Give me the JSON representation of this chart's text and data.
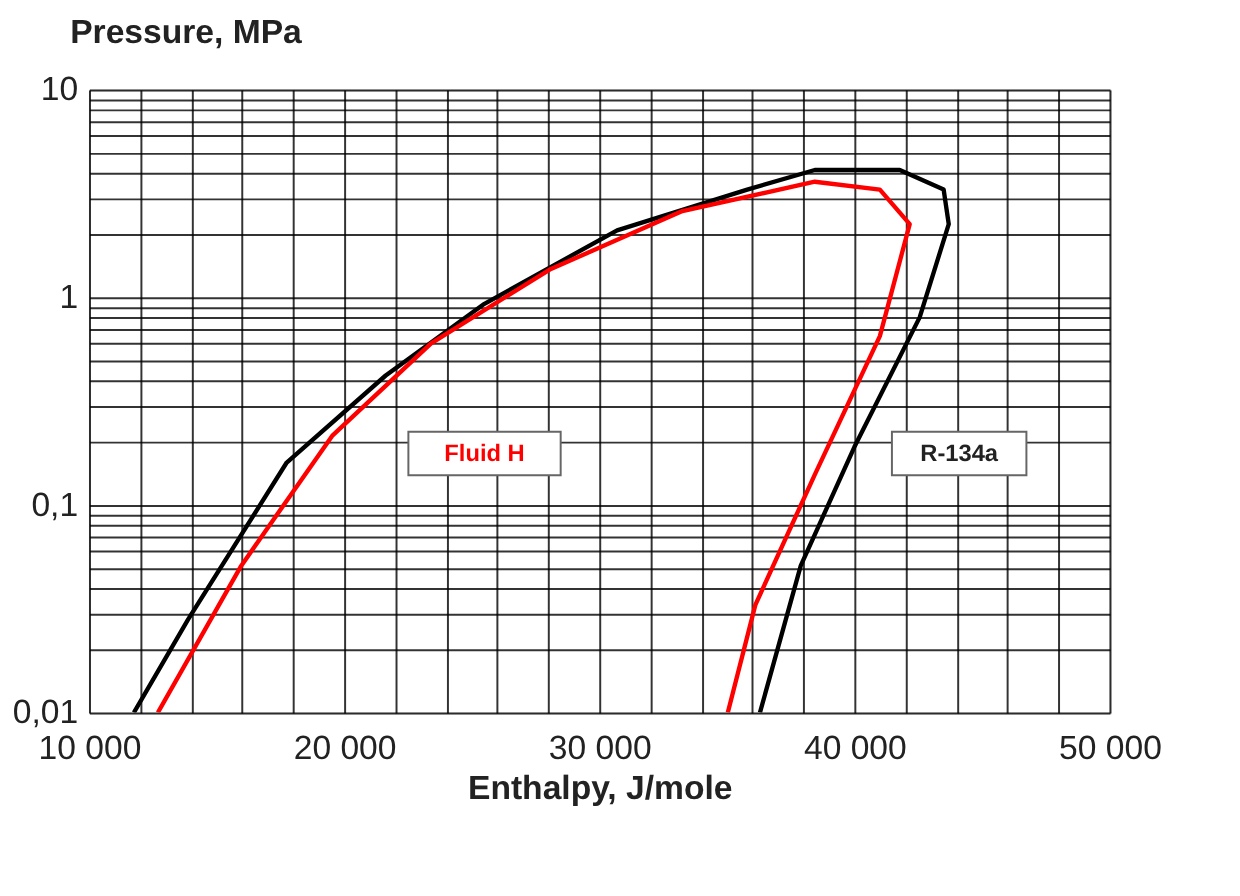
{
  "chart_data": {
    "type": "line",
    "ylabel": "Pressure, MPa",
    "xlabel": "Enthalpy, J/mole",
    "log": "y",
    "grid": true,
    "legend": false,
    "marker": "none",
    "line_style": "solid",
    "xlim": [
      10000,
      50000
    ],
    "ylim": [
      0.01,
      10
    ],
    "xticks": [
      {
        "value": 10000,
        "label": "10 000"
      },
      {
        "value": 12000,
        "label": null
      },
      {
        "value": 14000,
        "label": null
      },
      {
        "value": 16000,
        "label": null
      },
      {
        "value": 18000,
        "label": null
      },
      {
        "value": 20000,
        "label": "20 000"
      },
      {
        "value": 22000,
        "label": null
      },
      {
        "value": 24000,
        "label": null
      },
      {
        "value": 26000,
        "label": null
      },
      {
        "value": 28000,
        "label": null
      },
      {
        "value": 30000,
        "label": "30 000"
      },
      {
        "value": 32000,
        "label": null
      },
      {
        "value": 34000,
        "label": null
      },
      {
        "value": 36000,
        "label": null
      },
      {
        "value": 38000,
        "label": null
      },
      {
        "value": 40000,
        "label": "40 000"
      },
      {
        "value": 42000,
        "label": null
      },
      {
        "value": 44000,
        "label": null
      },
      {
        "value": 46000,
        "label": null
      },
      {
        "value": 48000,
        "label": null
      },
      {
        "value": 50000,
        "label": "50 000"
      }
    ],
    "yticks": [
      {
        "value": 0.01,
        "label": "0,01"
      },
      {
        "value": 0.02,
        "label": null
      },
      {
        "value": 0.03,
        "label": null
      },
      {
        "value": 0.04,
        "label": null
      },
      {
        "value": 0.05,
        "label": null
      },
      {
        "value": 0.06,
        "label": null
      },
      {
        "value": 0.07,
        "label": null
      },
      {
        "value": 0.08,
        "label": null
      },
      {
        "value": 0.09,
        "label": null
      },
      {
        "value": 0.1,
        "label": "0,1"
      },
      {
        "value": 0.2,
        "label": null
      },
      {
        "value": 0.3,
        "label": null
      },
      {
        "value": 0.4,
        "label": null
      },
      {
        "value": 0.5,
        "label": null
      },
      {
        "value": 0.6,
        "label": null
      },
      {
        "value": 0.7,
        "label": null
      },
      {
        "value": 0.8,
        "label": null
      },
      {
        "value": 0.9,
        "label": null
      },
      {
        "value": 1,
        "label": "1"
      },
      {
        "value": 2,
        "label": null
      },
      {
        "value": 3,
        "label": null
      },
      {
        "value": 4,
        "label": null
      },
      {
        "value": 5,
        "label": null
      },
      {
        "value": 6,
        "label": null
      },
      {
        "value": 7,
        "label": null
      },
      {
        "value": 8,
        "label": null
      },
      {
        "value": 9,
        "label": null
      },
      {
        "value": 10,
        "label": "10"
      }
    ],
    "series": [
      {
        "name": "R-134a",
        "color": "#000000",
        "x": [
          11760,
          13880,
          17750,
          21630,
          25500,
          30700,
          35800,
          38450,
          41780,
          43500,
          43700,
          42560,
          40000,
          37900,
          36300
        ],
        "values": [
          0.01,
          0.028,
          0.16,
          0.42,
          0.93,
          2.1,
          3.3,
          4.1,
          4.1,
          3.3,
          2.25,
          0.8,
          0.19,
          0.051,
          0.01
        ]
      },
      {
        "name": "Fluid H",
        "color": "#ff0000",
        "x": [
          12700,
          15970,
          19530,
          23410,
          28060,
          33260,
          38450,
          41000,
          42170,
          41000,
          38450,
          36120,
          35040
        ],
        "values": [
          0.01,
          0.051,
          0.215,
          0.6,
          1.36,
          2.6,
          3.6,
          3.3,
          2.25,
          0.65,
          0.14,
          0.033,
          0.01
        ]
      }
    ]
  }
}
